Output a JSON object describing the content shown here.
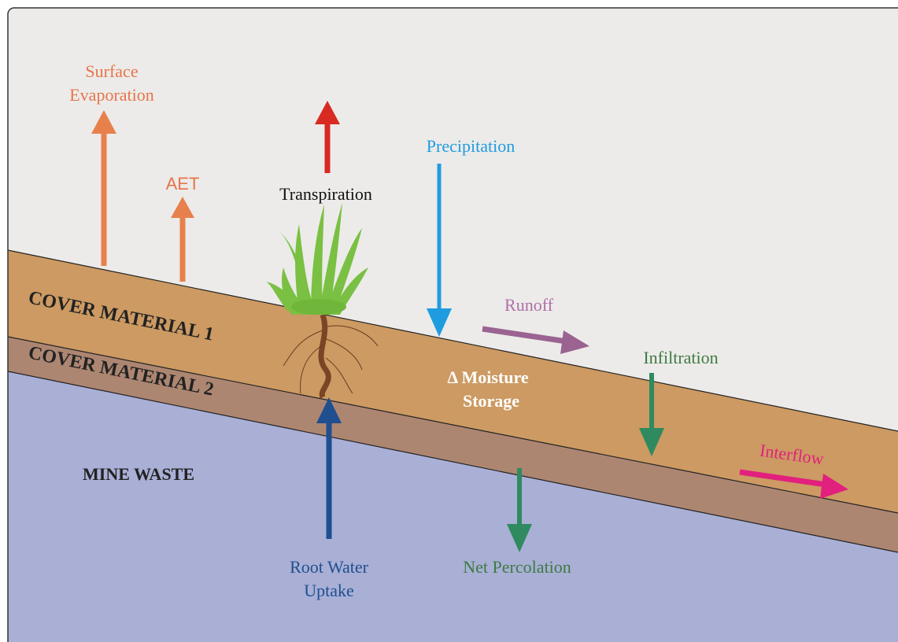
{
  "diagram": {
    "layers": [
      "COVER MATERIAL 1",
      "COVER MATERIAL 2",
      "MINE WASTE"
    ],
    "fluxes": {
      "surface_evaporation": [
        "Surface",
        "Evaporation"
      ],
      "aet": [
        "AET"
      ],
      "transpiration": [
        "Transpiration"
      ],
      "precipitation": [
        "Precipitation"
      ],
      "runoff": [
        "Runoff"
      ],
      "infiltration": [
        "Infiltration"
      ],
      "interflow": [
        "Interflow"
      ],
      "moisture_storage": [
        "Δ Moisture",
        "Storage"
      ],
      "root_water_uptake": [
        "Root Water",
        "Uptake"
      ],
      "net_percolation": [
        "Net Percolation"
      ]
    }
  }
}
